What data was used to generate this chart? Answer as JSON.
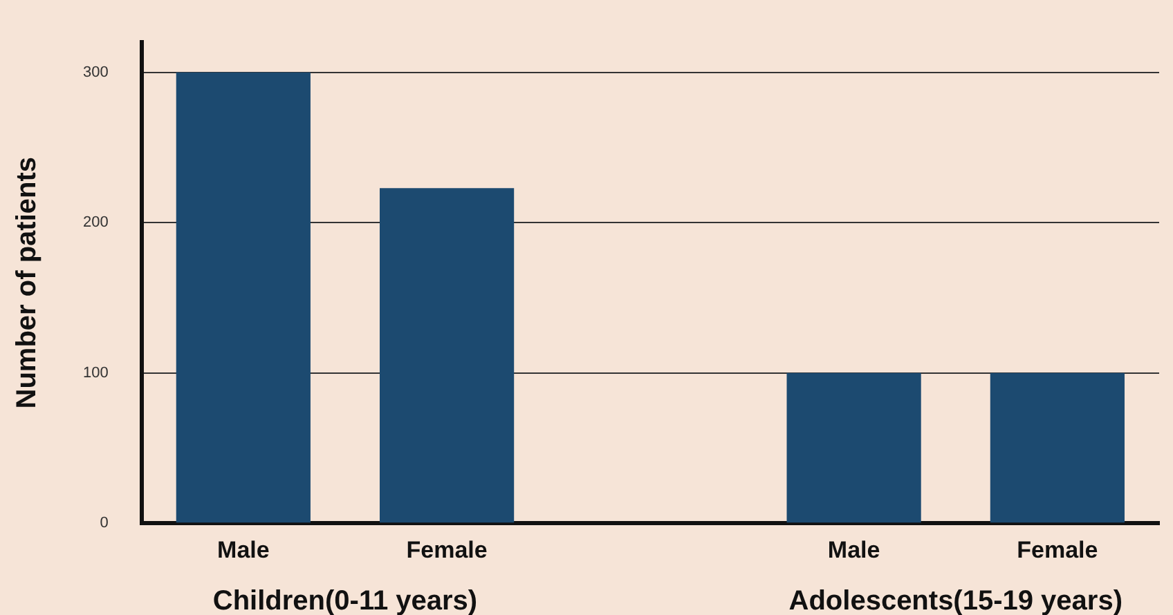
{
  "chart_data": {
    "type": "bar",
    "ylabel": "Number of patients",
    "categories": [
      "Male",
      "Female",
      null,
      "Male",
      "Female"
    ],
    "values": [
      300,
      223,
      null,
      100,
      100
    ],
    "color": "#1c4a70",
    "ylim": [
      0,
      320
    ],
    "yticks": [
      0,
      100,
      200,
      300
    ],
    "grid": "y",
    "legend": false,
    "annotations": [
      "Children(0-11 years)",
      "Adolescents(15-19 years)"
    ]
  }
}
